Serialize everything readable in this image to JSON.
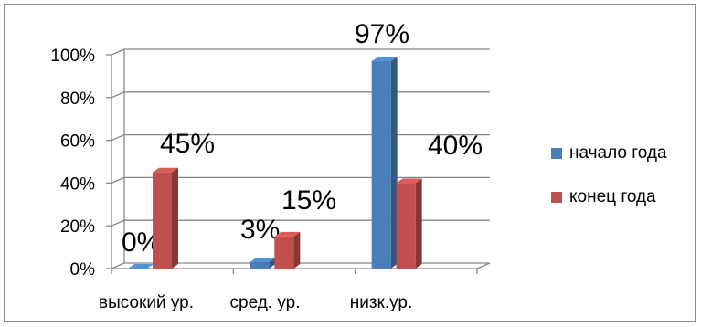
{
  "chart_data": {
    "type": "bar",
    "categories": [
      "высокий  ур.",
      "сред. ур.",
      "низк.ур."
    ],
    "series": [
      {
        "name": "начало года",
        "values": [
          0,
          3,
          97
        ],
        "labels": [
          "0%",
          "3%",
          "97%"
        ],
        "color": "#4a7ebb"
      },
      {
        "name": "конец года",
        "values": [
          45,
          15,
          40
        ],
        "labels": [
          "45%",
          "15%",
          "40%"
        ],
        "color": "#c0504d"
      }
    ],
    "yticks": [
      "0%",
      "20%",
      "40%",
      "60%",
      "80%",
      "100%"
    ],
    "ylim": [
      0,
      100
    ],
    "grid": true,
    "legend": "right"
  }
}
